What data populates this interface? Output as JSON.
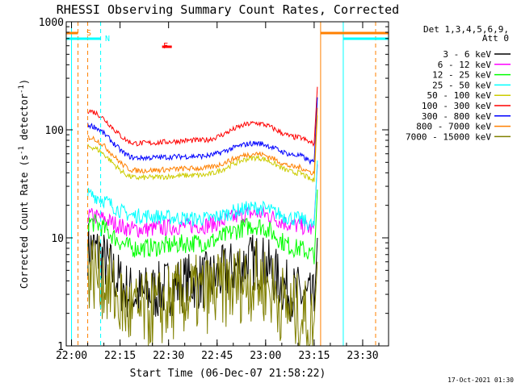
{
  "chart_data": {
    "type": "line",
    "title": "RHESSI Observing Summary Count Rates, Corrected",
    "xlabel": "Start Time (06-Dec-07 21:58:22)",
    "ylabel": "Corrected Count Rate (s",
    "ylabel_sup1": "-1",
    "ylabel_mid": " detector",
    "ylabel_sup2": "-1",
    "ylabel_end": ")",
    "y_scale": "log",
    "xlim": [
      "21:58:22",
      "23:38:00"
    ],
    "ylim": [
      1,
      1000
    ],
    "x_ticks": [
      "22:00",
      "22:15",
      "22:30",
      "22:45",
      "23:00",
      "23:15",
      "23:30"
    ],
    "y_ticks": [
      "1",
      "10",
      "100",
      "1000"
    ],
    "legend_header": [
      "Det 1,3,4,5,6,9,",
      "Att 0"
    ],
    "legend_placement": "right",
    "footer": "17-Oct-2021 01:30",
    "flag_labels": {
      "saa": "S",
      "night": "N",
      "flare": "F"
    },
    "series": [
      {
        "name": "3 - 6 keV",
        "color": "#000000",
        "values": [
          [
            "22:05",
            8
          ],
          [
            "22:20",
            3
          ],
          [
            "22:40",
            4
          ],
          [
            "22:57",
            6
          ],
          [
            "23:10",
            3
          ],
          [
            "23:15",
            2.5
          ]
        ]
      },
      {
        "name": "6 - 12 keV",
        "color": "#ff00ff",
        "values": [
          [
            "22:05",
            16
          ],
          [
            "22:20",
            12
          ],
          [
            "22:40",
            13
          ],
          [
            "22:57",
            17
          ],
          [
            "23:10",
            13
          ],
          [
            "23:15",
            12
          ]
        ]
      },
      {
        "name": "12 - 25 keV",
        "color": "#00ff00",
        "values": [
          [
            "22:05",
            14
          ],
          [
            "22:20",
            8
          ],
          [
            "22:40",
            9
          ],
          [
            "22:57",
            13
          ],
          [
            "23:10",
            8
          ],
          [
            "23:15",
            7
          ]
        ]
      },
      {
        "name": "25 - 50 keV",
        "color": "#00ffff",
        "values": [
          [
            "22:05",
            25
          ],
          [
            "22:20",
            16
          ],
          [
            "22:40",
            15
          ],
          [
            "22:57",
            19
          ],
          [
            "23:10",
            15
          ],
          [
            "23:15",
            13
          ]
        ]
      },
      {
        "name": "50 - 100 keV",
        "color": "#cccc00",
        "values": [
          [
            "22:05",
            70
          ],
          [
            "22:20",
            36
          ],
          [
            "22:40",
            38
          ],
          [
            "22:57",
            55
          ],
          [
            "23:10",
            40
          ],
          [
            "23:15",
            34
          ]
        ]
      },
      {
        "name": "100 - 300 keV",
        "color": "#ff0000",
        "values": [
          [
            "22:05",
            150
          ],
          [
            "22:20",
            75
          ],
          [
            "22:40",
            80
          ],
          [
            "22:57",
            115
          ],
          [
            "23:10",
            85
          ],
          [
            "23:15",
            75
          ]
        ]
      },
      {
        "name": "300 - 800 keV",
        "color": "#0000ff",
        "values": [
          [
            "22:05",
            110
          ],
          [
            "22:20",
            55
          ],
          [
            "22:40",
            57
          ],
          [
            "22:57",
            75
          ],
          [
            "23:10",
            58
          ],
          [
            "23:15",
            50
          ]
        ]
      },
      {
        "name": "800 - 7000 keV",
        "color": "#ff8000",
        "values": [
          [
            "22:05",
            85
          ],
          [
            "22:20",
            42
          ],
          [
            "22:40",
            44
          ],
          [
            "22:57",
            60
          ],
          [
            "23:10",
            45
          ],
          [
            "23:15",
            40
          ]
        ]
      },
      {
        "name": "7000 - 15000 keV",
        "color": "#808000",
        "values": [
          [
            "22:05",
            5
          ],
          [
            "22:20",
            2
          ],
          [
            "22:40",
            3
          ],
          [
            "22:57",
            4
          ],
          [
            "23:10",
            2
          ],
          [
            "23:15",
            1.5
          ]
        ]
      }
    ],
    "markers": [
      {
        "time": "22:00",
        "kind": "night-end",
        "color": "#00ffff",
        "style": "solid"
      },
      {
        "time": "22:02",
        "kind": "saa-start",
        "color": "#ff8000",
        "style": "dashed"
      },
      {
        "time": "22:05",
        "kind": "saa-end",
        "color": "#ff8000",
        "style": "dashed"
      },
      {
        "time": "22:09",
        "kind": "night-start",
        "color": "#00ffff",
        "style": "dashed"
      },
      {
        "time": "23:17",
        "kind": "saa-start",
        "color": "#ff8000",
        "style": "solid"
      },
      {
        "time": "23:24",
        "kind": "night-start",
        "color": "#00ffff",
        "style": "solid"
      },
      {
        "time": "23:34",
        "kind": "saa-end",
        "color": "#ff8000",
        "style": "dashed"
      }
    ]
  }
}
